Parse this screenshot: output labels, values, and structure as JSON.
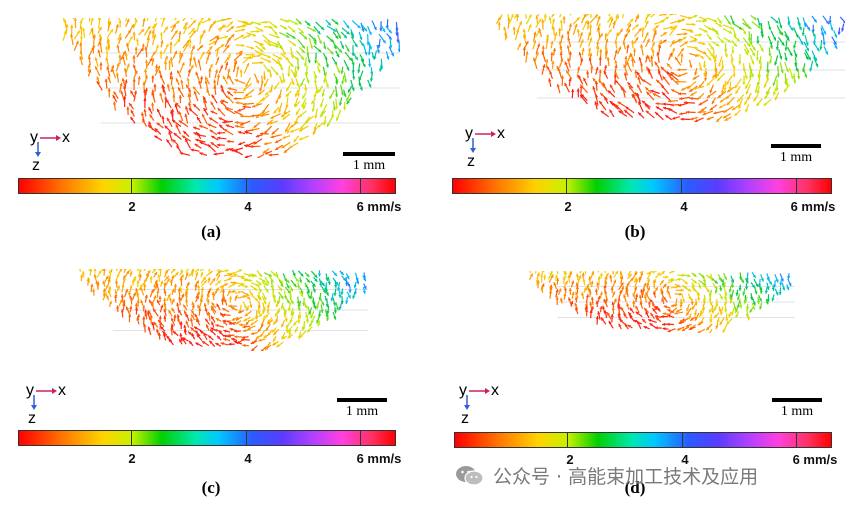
{
  "panels": [
    {
      "caption": "(a)",
      "scale_label": "1 mm",
      "ticks": [
        "2",
        "4",
        "6 mm/s"
      ]
    },
    {
      "caption": "(b)",
      "scale_label": "1 mm",
      "ticks": [
        "2",
        "4",
        "6 mm/s"
      ]
    },
    {
      "caption": "(c)",
      "scale_label": "1 mm",
      "ticks": [
        "2",
        "4",
        "6 mm/s"
      ]
    },
    {
      "caption": "(d)",
      "scale_label": "1 mm",
      "ticks": [
        "2",
        "4",
        "6 mm/s"
      ]
    }
  ],
  "axes": {
    "y": "y",
    "x": "x",
    "z": "z"
  },
  "colorbar": {
    "stops": [
      "#ff0000",
      "#ff7a00",
      "#ffd200",
      "#00d000",
      "#00c8ff",
      "#2a5cff",
      "#b040ff",
      "#ff40e0",
      "#ff0000"
    ]
  },
  "watermark": {
    "text": "公众号 · 高能束加工技术及应用"
  }
}
